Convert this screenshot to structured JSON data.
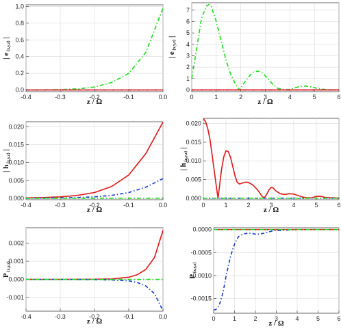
{
  "chart_data": [
    {
      "type": "line",
      "xlabel": "z / Ω",
      "ylabel": "| e",
      "ylabel_sub": "{x,y,z}",
      "ylabel_suffix": " |",
      "xlim": [
        -0.4,
        0.0
      ],
      "ylim": [
        -0.02,
        1.02
      ],
      "xticks": [
        -0.4,
        -0.3,
        -0.2,
        -0.1,
        0.0
      ],
      "xtick_labels": [
        "-0.4",
        "-0.3",
        "-0.2",
        "-0.1",
        "0.0"
      ],
      "yticks": [
        0.0,
        0.2,
        0.4,
        0.6,
        0.8,
        1.0
      ],
      "ytick_labels": [
        "0.0",
        "0.2",
        "0.4",
        "0.6",
        "0.8",
        "1.0"
      ],
      "grid": true,
      "series": [
        {
          "color": "#22dd22",
          "dash": "6,3,1.5,3",
          "x": [
            -0.4,
            -0.35,
            -0.3,
            -0.25,
            -0.2,
            -0.15,
            -0.1,
            -0.05,
            0.0
          ],
          "y": [
            0.001,
            0.002,
            0.005,
            0.013,
            0.035,
            0.09,
            0.2,
            0.45,
            0.98
          ]
        },
        {
          "color": "#1f3fd0",
          "dash": "5,3,1.5,3",
          "x": [
            -0.4,
            0.0
          ],
          "y": [
            0.0,
            0.0
          ]
        },
        {
          "color": "#e02020",
          "dash": "",
          "x": [
            -0.4,
            0.0
          ],
          "y": [
            0.0,
            0.0
          ]
        }
      ]
    },
    {
      "type": "line",
      "xlabel": "z / Ω",
      "ylabel": "| e",
      "ylabel_sub": "{x,y,z}",
      "ylabel_suffix": " |",
      "xlim": [
        0,
        6
      ],
      "ylim": [
        -0.15,
        7.65
      ],
      "xticks": [
        0,
        1,
        2,
        3,
        4,
        5,
        6
      ],
      "xtick_labels": [
        "0",
        "1",
        "2",
        "3",
        "4",
        "5",
        "6"
      ],
      "yticks": [
        0,
        1,
        2,
        3,
        4,
        5,
        6,
        7
      ],
      "ytick_labels": [
        "0",
        "1",
        "2",
        "3",
        "4",
        "5",
        "6",
        "7"
      ],
      "grid": true,
      "series": [
        {
          "color": "#22dd22",
          "dash": "6,3,1.5,3",
          "x": [
            0,
            0.2,
            0.4,
            0.6,
            0.7,
            0.8,
            1.0,
            1.2,
            1.4,
            1.6,
            1.8,
            1.95,
            2.1,
            2.3,
            2.5,
            2.7,
            2.9,
            3.1,
            3.3,
            3.5,
            3.7,
            3.9,
            4.0,
            4.2,
            4.4,
            4.6,
            4.8,
            5.0,
            5.2,
            5.5,
            5.8,
            6.0
          ],
          "y": [
            1.0,
            3.6,
            6.3,
            7.35,
            7.5,
            7.3,
            6.0,
            4.3,
            2.6,
            1.3,
            0.45,
            0.0,
            0.5,
            1.1,
            1.55,
            1.65,
            1.45,
            1.0,
            0.5,
            0.15,
            0.05,
            0.03,
            0.05,
            0.18,
            0.3,
            0.35,
            0.3,
            0.2,
            0.1,
            0.03,
            0.01,
            0.0
          ]
        },
        {
          "color": "#1f3fd0",
          "dash": "5,3,1.5,3",
          "x": [
            0,
            6
          ],
          "y": [
            0.0,
            0.0
          ]
        },
        {
          "color": "#e02020",
          "dash": "",
          "x": [
            0,
            6
          ],
          "y": [
            0.0,
            0.0
          ]
        }
      ]
    },
    {
      "type": "line",
      "xlabel": "z / Ω",
      "ylabel": "| h",
      "ylabel_sub": "{x,y,z}",
      "ylabel_suffix": " |",
      "xlim": [
        -0.4,
        0.0
      ],
      "ylim": [
        -0.0004,
        0.0214
      ],
      "xticks": [
        -0.4,
        -0.3,
        -0.2,
        -0.1,
        0.0
      ],
      "xtick_labels": [
        "-0.4",
        "-0.3",
        "-0.2",
        "-0.1",
        "0.0"
      ],
      "yticks": [
        0.0,
        0.005,
        0.01,
        0.015,
        0.02
      ],
      "ytick_labels": [
        "0.000",
        "0.005",
        "0.010",
        "0.015",
        "0.020"
      ],
      "grid": true,
      "series": [
        {
          "color": "#e02020",
          "dash": "",
          "x": [
            -0.4,
            -0.35,
            -0.3,
            -0.25,
            -0.2,
            -0.15,
            -0.1,
            -0.05,
            0.0
          ],
          "y": [
            0.0001,
            0.0002,
            0.0004,
            0.0008,
            0.0016,
            0.0033,
            0.0065,
            0.0125,
            0.0213
          ]
        },
        {
          "color": "#1f3fd0",
          "dash": "5,3,1.5,3",
          "x": [
            -0.4,
            -0.35,
            -0.3,
            -0.25,
            -0.2,
            -0.15,
            -0.1,
            -0.05,
            0.0
          ],
          "y": [
            0.0,
            5e-05,
            0.0001,
            0.0002,
            0.0004,
            0.0008,
            0.0016,
            0.0031,
            0.0055
          ]
        },
        {
          "color": "#22dd22",
          "dash": "6,3,1.5,3",
          "x": [
            -0.4,
            0.0
          ],
          "y": [
            0.0,
            0.0
          ]
        }
      ]
    },
    {
      "type": "line",
      "xlabel": "z / Ω",
      "ylabel": "| h",
      "ylabel_sub": "{x,y,z}",
      "ylabel_suffix": " |",
      "xlim": [
        0,
        6
      ],
      "ylim": [
        -0.0004,
        0.0214
      ],
      "xticks": [
        0,
        1,
        2,
        3,
        4,
        5,
        6
      ],
      "xtick_labels": [
        "0",
        "1",
        "2",
        "3",
        "4",
        "5",
        "6"
      ],
      "yticks": [
        0.0,
        0.005,
        0.01,
        0.015,
        0.02
      ],
      "ytick_labels": [
        "0.000",
        "0.005",
        "0.010",
        "0.015",
        "0.020"
      ],
      "grid": true,
      "series": [
        {
          "color": "#e02020",
          "dash": "",
          "x": [
            0,
            0.1,
            0.2,
            0.3,
            0.4,
            0.5,
            0.6,
            0.65,
            0.7,
            0.8,
            0.9,
            1.0,
            1.1,
            1.2,
            1.3,
            1.4,
            1.5,
            1.6,
            1.7,
            1.8,
            1.9,
            2.0,
            2.2,
            2.4,
            2.6,
            2.7,
            2.8,
            2.9,
            3.0,
            3.1,
            3.2,
            3.4,
            3.6,
            3.8,
            4.0,
            4.2,
            4.4,
            4.6,
            4.8,
            5.0,
            5.2,
            5.4,
            5.6,
            5.8,
            6.0
          ],
          "y": [
            0.0213,
            0.0205,
            0.0185,
            0.0155,
            0.011,
            0.0065,
            0.002,
            0.0,
            0.0025,
            0.0075,
            0.011,
            0.0127,
            0.0125,
            0.011,
            0.0085,
            0.006,
            0.0042,
            0.0038,
            0.004,
            0.0042,
            0.0043,
            0.0042,
            0.0035,
            0.0022,
            0.0005,
            0.0001,
            0.001,
            0.0022,
            0.0029,
            0.0027,
            0.002,
            0.0012,
            0.001,
            0.0012,
            0.0011,
            0.0007,
            0.0003,
            0.0001,
            0.0001,
            0.0005,
            0.0005,
            0.0002,
            0.0001,
            0.0001,
            0.0
          ]
        },
        {
          "color": "#1f3fd0",
          "dash": "5,3,1.5,3",
          "x": [
            0,
            6
          ],
          "y": [
            0.0,
            0.0
          ]
        },
        {
          "color": "#22dd22",
          "dash": "6,3,1.5,3",
          "x": [
            0,
            6
          ],
          "y": [
            0.0,
            0.0
          ]
        }
      ]
    },
    {
      "type": "line",
      "xlabel": "z / Ω",
      "ylabel": "P",
      "ylabel_sub": "{x,y,z}",
      "ylabel_suffix": "",
      "xlim": [
        -0.4,
        0.0
      ],
      "ylim": [
        -0.00175,
        0.00285
      ],
      "xticks": [
        -0.4,
        -0.3,
        -0.2,
        -0.1,
        0.0
      ],
      "xtick_labels": [
        "-0.4",
        "-0.3",
        "-0.2",
        "-0.1",
        "0.0"
      ],
      "yticks": [
        -0.001,
        0.0,
        0.001,
        0.002
      ],
      "ytick_labels": [
        "-0.001",
        "0.000",
        "0.001",
        "0.002"
      ],
      "grid": true,
      "series": [
        {
          "color": "#e02020",
          "dash": "",
          "x": [
            -0.4,
            -0.3,
            -0.2,
            -0.15,
            -0.1,
            -0.075,
            -0.05,
            -0.025,
            0.0
          ],
          "y": [
            0.0,
            0.0,
            1e-05,
            3e-05,
            0.00012,
            0.00026,
            0.00055,
            0.0012,
            0.0027
          ]
        },
        {
          "color": "#1f3fd0",
          "dash": "5,3,1.5,3",
          "x": [
            -0.4,
            -0.3,
            -0.2,
            -0.15,
            -0.1,
            -0.075,
            -0.05,
            -0.025,
            0.0
          ],
          "y": [
            0.0,
            0.0,
            -1e-05,
            -3e-05,
            -8e-05,
            -0.00017,
            -0.00036,
            -0.00078,
            -0.00172
          ]
        },
        {
          "color": "#22dd22",
          "dash": "6,3,1.5,3",
          "x": [
            -0.4,
            0.0
          ],
          "y": [
            0.0,
            0.0
          ]
        }
      ]
    },
    {
      "type": "line",
      "xlabel": "z / Ω",
      "ylabel": "P",
      "ylabel_sub": "{x,y,z}",
      "ylabel_suffix": "",
      "xlim": [
        0,
        6
      ],
      "ylim": [
        -0.00182,
        4e-05
      ],
      "xticks": [
        0,
        1,
        2,
        3,
        4,
        5,
        6
      ],
      "xtick_labels": [
        "0",
        "1",
        "2",
        "3",
        "4",
        "5",
        "6"
      ],
      "yticks": [
        0.0,
        -0.0005,
        -0.001,
        -0.0015
      ],
      "ytick_labels": [
        "0.0000",
        "-0.0005",
        "-0.0010",
        "-0.0015"
      ],
      "grid": true,
      "series": [
        {
          "color": "#1f3fd0",
          "dash": "5,3,1.5,3",
          "x": [
            0,
            0.1,
            0.2,
            0.3,
            0.4,
            0.5,
            0.6,
            0.7,
            0.8,
            0.9,
            1.0,
            1.1,
            1.2,
            1.4,
            1.6,
            1.8,
            2.0,
            2.2,
            2.4,
            2.6,
            2.8,
            3.0,
            3.2,
            3.5,
            4.0,
            4.5,
            5.0,
            5.5,
            6.0
          ],
          "y": [
            -0.00175,
            -0.00174,
            -0.0017,
            -0.0016,
            -0.00145,
            -0.00125,
            -0.001,
            -0.0008,
            -0.0006,
            -0.00045,
            -0.00032,
            -0.00022,
            -0.00015,
            -0.0001,
            -8e-05,
            -8e-05,
            -0.0001,
            -0.0001,
            -8e-05,
            -6e-05,
            -3e-05,
            -2e-05,
            -2e-05,
            -1e-05,
            0.0,
            0.0,
            0.0,
            0.0,
            0.0
          ]
        },
        {
          "color": "#e02020",
          "dash": "",
          "x": [
            0,
            6
          ],
          "y": [
            0.0,
            0.0
          ]
        },
        {
          "color": "#22dd22",
          "dash": "6,3,1.5,3",
          "x": [
            0,
            6
          ],
          "y": [
            0.0,
            0.0
          ]
        }
      ]
    }
  ]
}
